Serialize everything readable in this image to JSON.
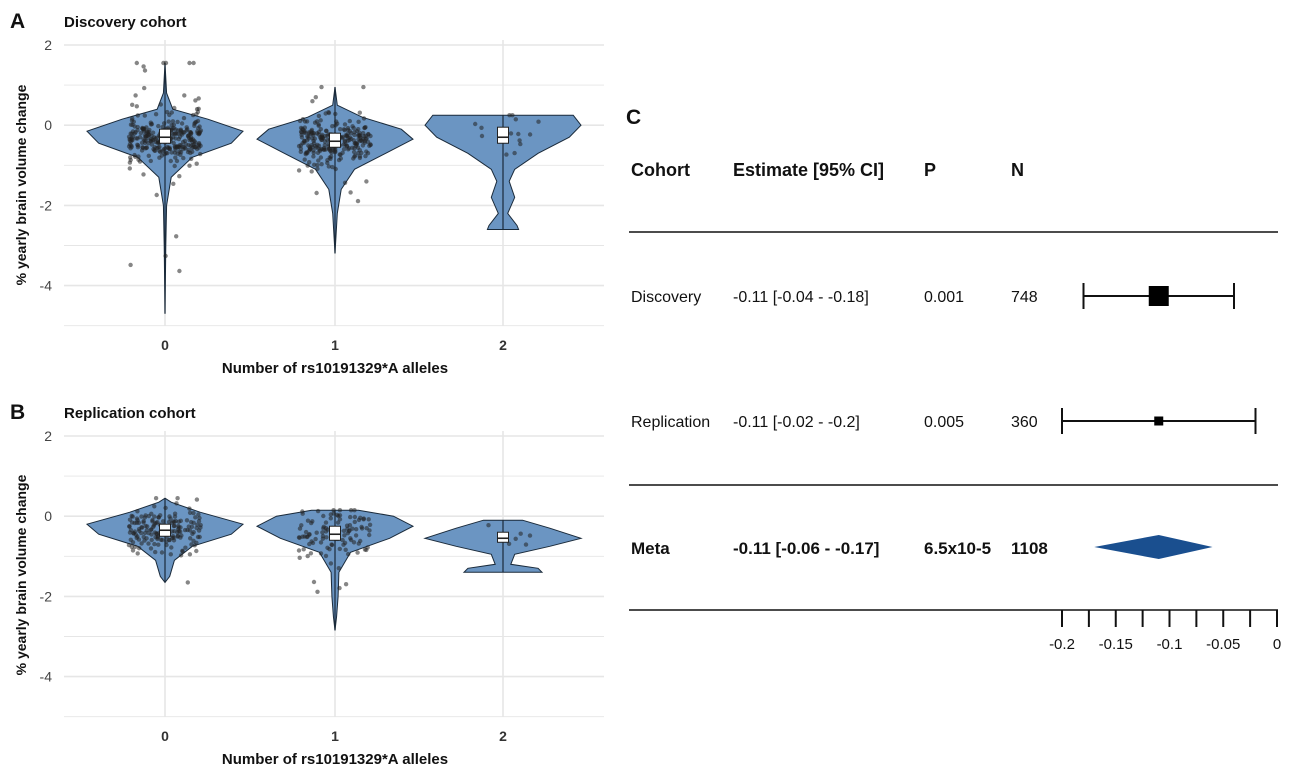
{
  "panels": {
    "a_letter": "A",
    "b_letter": "B",
    "c_letter": "C"
  },
  "colors": {
    "violin_fill": "#6b95c2",
    "violin_stroke": "#1a2a3a",
    "grid": "#e6e6e6",
    "point": "#222222",
    "diamond": "#1a4f8f"
  },
  "chart_data": [
    {
      "type": "violin",
      "title": "Discovery cohort",
      "xlabel": "Number of rs10191329*A alleles",
      "ylabel": "% yearly brain volume change",
      "categories": [
        "0",
        "1",
        "2"
      ],
      "ylim": [
        -5,
        2
      ],
      "yticks": [
        2,
        0,
        -2,
        -4
      ],
      "grid": true,
      "groups": [
        {
          "category": "0",
          "median": -0.3,
          "q1": -0.45,
          "q3": -0.1,
          "min": -4.7,
          "max": 1.55
        },
        {
          "category": "1",
          "median": -0.4,
          "q1": -0.55,
          "q3": -0.2,
          "min": -3.2,
          "max": 0.95
        },
        {
          "category": "2",
          "median": -0.3,
          "q1": -0.45,
          "q3": -0.05,
          "min": -2.6,
          "max": 0.25
        }
      ]
    },
    {
      "type": "violin",
      "title": "Replication cohort",
      "xlabel": "Number of rs10191329*A alleles",
      "ylabel": "% yearly brain volume change",
      "categories": [
        "0",
        "1",
        "2"
      ],
      "ylim": [
        -5,
        2
      ],
      "yticks": [
        2,
        0,
        -2,
        -4
      ],
      "grid": true,
      "groups": [
        {
          "category": "0",
          "median": -0.35,
          "q1": -0.5,
          "q3": -0.2,
          "min": -1.65,
          "max": 0.45
        },
        {
          "category": "1",
          "median": -0.45,
          "q1": -0.6,
          "q3": -0.25,
          "min": -2.85,
          "max": 0.15
        },
        {
          "category": "2",
          "median": -0.55,
          "q1": -0.65,
          "q3": -0.4,
          "min": -1.4,
          "max": -0.1
        }
      ]
    },
    {
      "type": "forest",
      "headers": {
        "cohort": "Cohort",
        "estimate": "Estimate [95% CI]",
        "p": "P",
        "n": "N"
      },
      "rows": [
        {
          "cohort": "Discovery",
          "estimate_text": "-0.11 [-0.04 - -0.18]",
          "p": "0.001",
          "n": "748",
          "estimate": -0.11,
          "lower": -0.18,
          "upper": -0.04,
          "weight": 748,
          "bold": false
        },
        {
          "cohort": "Replication",
          "estimate_text": "-0.11 [-0.02 - -0.2]",
          "p": "0.005",
          "n": "360",
          "estimate": -0.11,
          "lower": -0.2,
          "upper": -0.02,
          "weight": 360,
          "bold": false
        },
        {
          "cohort": "Meta",
          "estimate_text": "-0.11 [-0.06 - -0.17]",
          "p": "6.5x10-5",
          "n": "1108",
          "estimate": -0.11,
          "lower": -0.17,
          "upper": -0.06,
          "weight": 1108,
          "bold": true,
          "diamond": true
        }
      ],
      "xticks": [
        -0.2,
        -0.15,
        -0.1,
        -0.05,
        0
      ],
      "xtick_labels": [
        "-0.2",
        "-0.15",
        "-0.1",
        "-0.05",
        "0"
      ],
      "xlim": [
        -0.2,
        0
      ]
    }
  ]
}
